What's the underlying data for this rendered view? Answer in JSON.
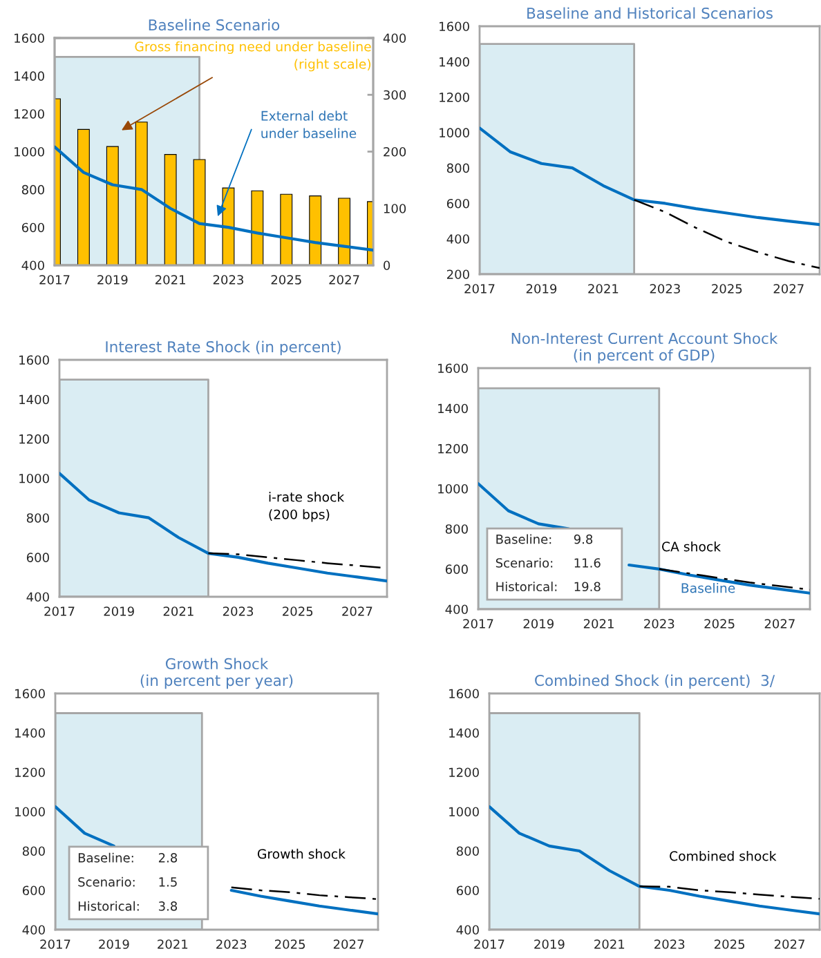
{
  "chart_data": [
    {
      "type": "line",
      "title": "Baseline Scenario",
      "x": [
        2017,
        2018,
        2019,
        2020,
        2021,
        2022,
        2023,
        2024,
        2025,
        2026,
        2027,
        2028
      ],
      "xlim": [
        2017,
        2028
      ],
      "xticks": [
        2017,
        2019,
        2021,
        2023,
        2025,
        2027
      ],
      "ylim": [
        400,
        1600
      ],
      "yticks": [
        400,
        600,
        800,
        1000,
        1200,
        1400,
        1600
      ],
      "y2lim": [
        0,
        400
      ],
      "y2ticks": [
        0,
        100,
        200,
        300,
        400
      ],
      "series": [
        {
          "type": "area",
          "color": "#daedf3",
          "x": [
            2017,
            2018,
            2019,
            2020,
            2021,
            2022
          ],
          "values": [
            1500,
            1500,
            1500,
            1500,
            1500,
            1500
          ]
        },
        {
          "type": "bar",
          "axis": "y2",
          "name": "Gross financing need under baseline\n(right scale)",
          "color": "#ffc000",
          "values": [
            293,
            239,
            209,
            252,
            195,
            186,
            136,
            131,
            125,
            122,
            118,
            112
          ]
        },
        {
          "name": "External debt\nunder baseline",
          "color": "#0070c0",
          "values": [
            1025,
            890,
            825,
            800,
            700,
            620,
            600,
            570,
            545,
            520,
            500,
            480
          ]
        }
      ]
    },
    {
      "type": "line",
      "title": "Baseline and Historical Scenarios",
      "x": [
        2017,
        2018,
        2019,
        2020,
        2021,
        2022,
        2023,
        2024,
        2025,
        2026,
        2027,
        2028
      ],
      "xlim": [
        2017,
        2028
      ],
      "xticks": [
        2017,
        2019,
        2021,
        2023,
        2025,
        2027
      ],
      "ylim": [
        200,
        1600
      ],
      "yticks": [
        200,
        400,
        600,
        800,
        1000,
        1200,
        1400,
        1600
      ],
      "series": [
        {
          "type": "area",
          "color": "#daedf3",
          "x": [
            2017,
            2018,
            2019,
            2020,
            2021,
            2022
          ],
          "values": [
            1500,
            1500,
            1500,
            1500,
            1500,
            1500
          ]
        },
        {
          "color": "#0070c0",
          "values": [
            1025,
            890,
            825,
            800,
            700,
            620,
            600,
            570,
            545,
            520,
            500,
            480
          ]
        },
        {
          "line_style": "dashed",
          "color": "#000000",
          "x": [
            2022,
            2023,
            2024,
            2025,
            2026,
            2027,
            2028
          ],
          "values": [
            620,
            551,
            462,
            383,
            325,
            274,
            235
          ]
        }
      ]
    },
    {
      "type": "line",
      "title": "Interest Rate Shock (in percent)",
      "x": [
        2017,
        2018,
        2019,
        2020,
        2021,
        2022,
        2023,
        2024,
        2025,
        2026,
        2027,
        2028
      ],
      "xlim": [
        2017,
        2028
      ],
      "xticks": [
        2017,
        2019,
        2021,
        2023,
        2025,
        2027
      ],
      "ylim": [
        400,
        1600
      ],
      "yticks": [
        400,
        600,
        800,
        1000,
        1200,
        1400,
        1600
      ],
      "series": [
        {
          "type": "area",
          "color": "#daedf3",
          "x": [
            2017,
            2018,
            2019,
            2020,
            2021,
            2022
          ],
          "values": [
            1500,
            1500,
            1500,
            1500,
            1500,
            1500
          ]
        },
        {
          "color": "#0070c0",
          "values": [
            1025,
            890,
            825,
            800,
            700,
            620,
            600,
            570,
            545,
            520,
            500,
            480
          ]
        },
        {
          "line_style": "dashed",
          "name": "i-rate shock\n(200 bps)",
          "color": "#000000",
          "x": [
            2022,
            2023,
            2024,
            2025,
            2026,
            2027,
            2028
          ],
          "values": [
            620,
            615,
            600,
            585,
            570,
            558,
            545
          ]
        }
      ]
    },
    {
      "type": "line",
      "title": "Non-Interest Current Account Shock\n(in percent of GDP)",
      "x": [
        2017,
        2018,
        2019,
        2020,
        2021,
        2022,
        2023,
        2024,
        2025,
        2026,
        2027,
        2028
      ],
      "xlim": [
        2017,
        2028
      ],
      "xticks": [
        2017,
        2019,
        2021,
        2023,
        2025,
        2027
      ],
      "ylim": [
        400,
        1600
      ],
      "yticks": [
        400,
        600,
        800,
        1000,
        1200,
        1400,
        1600
      ],
      "annotations": [
        "Baseline:",
        "9.8",
        "Scenario:",
        "11.6",
        "Historical:",
        "19.8"
      ],
      "series": [
        {
          "type": "area",
          "color": "#daedf3",
          "x": [
            2017,
            2018,
            2019,
            2020,
            2021,
            2022,
            2023
          ],
          "values": [
            1500,
            1500,
            1500,
            1500,
            1500,
            1500,
            1500
          ]
        },
        {
          "name": "Baseline",
          "color": "#0070c0",
          "values": [
            1025,
            890,
            825,
            800,
            null,
            620,
            600,
            570,
            545,
            520,
            500,
            480
          ]
        },
        {
          "line_style": "dashed",
          "name": "CA shock",
          "color": "#000000",
          "x": [
            2023,
            2024,
            2025,
            2026,
            2027,
            2028
          ],
          "values": [
            600,
            578,
            555,
            533,
            515,
            497
          ]
        }
      ]
    },
    {
      "type": "line",
      "title": "Growth Shock\n(in percent per year)",
      "x": [
        2017,
        2018,
        2019,
        2020,
        2021,
        2022,
        2023,
        2024,
        2025,
        2026,
        2027,
        2028
      ],
      "xlim": [
        2017,
        2028
      ],
      "xticks": [
        2017,
        2019,
        2021,
        2023,
        2025,
        2027
      ],
      "ylim": [
        400,
        1600
      ],
      "yticks": [
        400,
        600,
        800,
        1000,
        1200,
        1400,
        1600
      ],
      "annotations": [
        "Baseline:",
        "2.8",
        "Scenario:",
        "1.5",
        "Historical:",
        "3.8"
      ],
      "series": [
        {
          "type": "area",
          "color": "#daedf3",
          "x": [
            2017,
            2018,
            2019,
            2020,
            2021,
            2022
          ],
          "values": [
            1500,
            1500,
            1500,
            1500,
            1500,
            1500
          ]
        },
        {
          "color": "#0070c0",
          "values": [
            1025,
            890,
            825,
            null,
            null,
            null,
            600,
            570,
            545,
            520,
            500,
            480
          ]
        },
        {
          "line_style": "dashed",
          "name": "Growth shock",
          "color": "#000000",
          "x": [
            2023,
            2024,
            2025,
            2026,
            2027,
            2028
          ],
          "values": [
            615,
            600,
            590,
            575,
            565,
            555
          ]
        }
      ]
    },
    {
      "type": "line",
      "title": "Combined Shock (in percent)  3/",
      "x": [
        2017,
        2018,
        2019,
        2020,
        2021,
        2022,
        2023,
        2024,
        2025,
        2026,
        2027,
        2028
      ],
      "xlim": [
        2017,
        2028
      ],
      "xticks": [
        2017,
        2019,
        2021,
        2023,
        2025,
        2027
      ],
      "ylim": [
        400,
        1600
      ],
      "yticks": [
        400,
        600,
        800,
        1000,
        1200,
        1400,
        1600
      ],
      "series": [
        {
          "type": "area",
          "color": "#daedf3",
          "x": [
            2017,
            2018,
            2019,
            2020,
            2021,
            2022
          ],
          "values": [
            1500,
            1500,
            1500,
            1500,
            1500,
            1500
          ]
        },
        {
          "color": "#0070c0",
          "values": [
            1025,
            890,
            825,
            800,
            700,
            620,
            600,
            570,
            545,
            520,
            500,
            480
          ]
        },
        {
          "line_style": "dashed",
          "name": "Combined shock",
          "color": "#000000",
          "x": [
            2022,
            2023,
            2024,
            2025,
            2026,
            2027,
            2028
          ],
          "values": [
            620,
            618,
            600,
            590,
            578,
            567,
            557
          ]
        }
      ]
    }
  ]
}
